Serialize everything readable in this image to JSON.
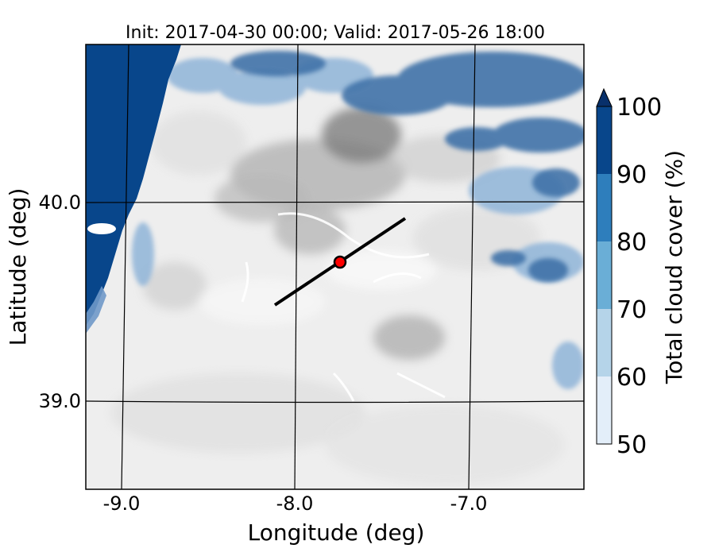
{
  "title": "Init: 2017-04-30 00:00; Valid: 2017-05-26 18:00",
  "x_axis": {
    "label": "Longitude (deg)",
    "ticks": [
      "-9.0",
      "-8.0",
      "-7.0"
    ]
  },
  "y_axis": {
    "label": "Latitude (deg)",
    "ticks": [
      "40.0",
      "39.0"
    ]
  },
  "colorbar": {
    "label": "Total cloud cover (%)",
    "ticks": [
      "50",
      "60",
      "70",
      "80",
      "90",
      "100"
    ],
    "colors": [
      "#e3eef9",
      "#b5d4e9",
      "#6aaed6",
      "#2e7ebc",
      "#08468b",
      "#08306b"
    ],
    "extend": "max"
  },
  "map": {
    "ocean_color": "#08468b",
    "land_base_color": "#eeeeee",
    "lon_range": [
      -9.2,
      -6.3
    ],
    "lat_range": [
      38.5,
      40.8
    ]
  },
  "transect": {
    "start": [
      -8.12,
      39.47
    ],
    "end": [
      -7.38,
      39.91
    ],
    "color": "#000000"
  },
  "marker": {
    "lon": -7.75,
    "lat": 39.69,
    "color": "#ff0000"
  }
}
